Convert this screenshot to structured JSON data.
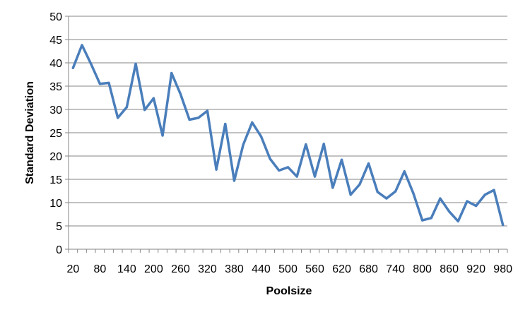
{
  "chart_data": {
    "type": "line",
    "title": "",
    "xlabel": "Poolsize",
    "ylabel": "Standard Deviation",
    "ylim": [
      0,
      50
    ],
    "yticks": [
      "0",
      "5",
      "10",
      "15",
      "20",
      "25",
      "30",
      "35",
      "40",
      "45",
      "50"
    ],
    "xtick_labels": [
      "20",
      "80",
      "140",
      "200",
      "260",
      "320",
      "380",
      "440",
      "500",
      "560",
      "620",
      "680",
      "740",
      "800",
      "860",
      "920",
      "980"
    ],
    "grid": true,
    "legend": "none",
    "x": [
      20,
      40,
      60,
      80,
      100,
      120,
      140,
      160,
      180,
      200,
      220,
      240,
      260,
      280,
      300,
      320,
      340,
      360,
      380,
      400,
      420,
      440,
      460,
      480,
      500,
      520,
      540,
      560,
      580,
      600,
      620,
      640,
      660,
      680,
      700,
      720,
      740,
      760,
      780,
      800,
      820,
      840,
      860,
      880,
      900,
      920,
      940,
      960,
      980
    ],
    "series": [
      {
        "color": "#4a7ebb",
        "values": [
          38.9,
          43.8,
          39.8,
          35.5,
          35.7,
          28.2,
          30.5,
          39.8,
          29.9,
          32.4,
          24.4,
          37.8,
          33.3,
          27.8,
          28.2,
          29.7,
          17.1,
          26.9,
          14.7,
          22.4,
          27.2,
          24.2,
          19.4,
          16.9,
          17.6,
          15.6,
          22.5,
          15.6,
          22.6,
          13.2,
          19.2,
          11.7,
          13.9,
          18.4,
          12.3,
          10.9,
          12.4,
          16.7,
          12.0,
          6.2,
          6.7,
          10.9,
          8.1,
          6.0,
          10.3,
          9.3,
          11.7,
          12.7,
          5.2
        ]
      }
    ]
  }
}
